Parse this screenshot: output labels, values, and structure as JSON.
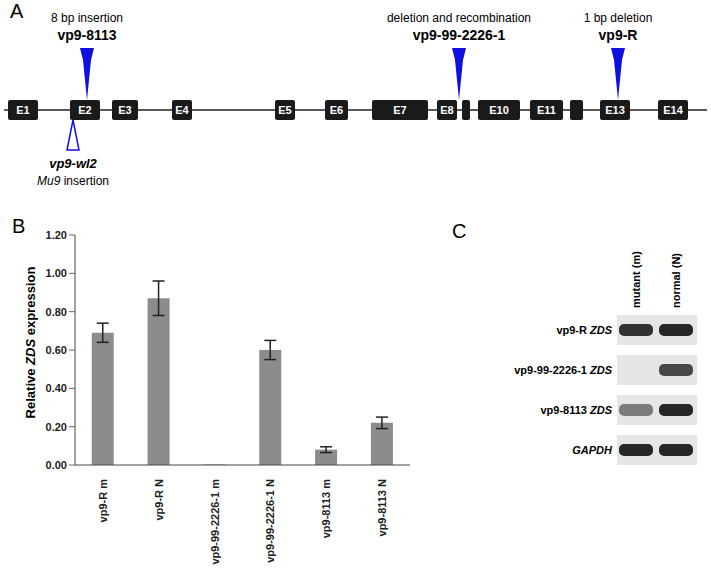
{
  "panel_labels": [
    "A",
    "B",
    "C"
  ],
  "gene_diagram": {
    "exons": [
      "E1",
      "E2",
      "E3",
      "E4",
      "E5",
      "E6",
      "E7",
      "E8",
      null,
      "E10",
      "E11",
      null,
      "E13",
      "E14"
    ],
    "mutations": [
      {
        "line1": "8 bp insertion",
        "line2": "vp9-8113",
        "exon": 1,
        "color": "#1010e0"
      },
      {
        "line1": "deletion and recombination",
        "line2": "vp9-99-2226-1",
        "exon": 8,
        "color": "#1010e0"
      },
      {
        "line1": "1 bp deletion",
        "line2": "vp9-R",
        "exon": 12,
        "color": "#1010e0"
      }
    ],
    "insertion": {
      "line1": "vp9-wl2",
      "line2": "Mu9 insertion",
      "exon": 1,
      "color": "#1010e0"
    }
  },
  "chart_data": {
    "type": "bar",
    "categories": [
      "vp9-R m",
      "vp9-R N",
      "vp9-99-2226-1 m",
      "vp9-99-2226-1 N",
      "vp9-8113 m",
      "vp9-8113 N"
    ],
    "values": [
      0.69,
      0.87,
      0.003,
      0.6,
      0.08,
      0.22
    ],
    "errors": [
      0.05,
      0.09,
      0.0,
      0.05,
      0.015,
      0.03
    ],
    "color": "#8c8c8c",
    "ylabel": "Relative ZDS expression",
    "ylim": [
      0,
      1.2
    ],
    "yticks": [
      {
        "value": 0,
        "label": "0.00"
      },
      {
        "value": 0.2,
        "label": "0.20"
      },
      {
        "value": 0.4,
        "label": "0.40"
      },
      {
        "value": 0.6,
        "label": "0.60"
      },
      {
        "value": 0.8,
        "label": "0.80"
      },
      {
        "value": 1.0,
        "label": "1.00"
      },
      {
        "value": 1.2,
        "label": "1.20"
      }
    ],
    "grid": false
  },
  "gel": {
    "columns": [
      "mutant (m)",
      "normal (N)"
    ],
    "rows": [
      "vp9-R ZDS",
      "vp9-99-2226-1 ZDS",
      "vp9-8113 ZDS",
      "GAPDH"
    ],
    "band_intensity": [
      [
        0.85,
        0.9
      ],
      [
        0.0,
        0.75
      ],
      [
        0.5,
        0.9
      ],
      [
        0.9,
        0.9
      ]
    ]
  }
}
